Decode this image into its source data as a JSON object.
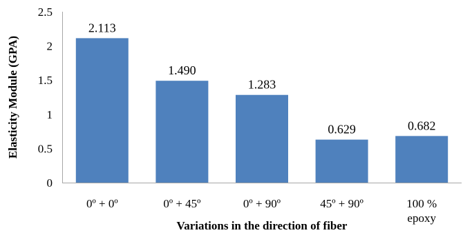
{
  "chart_data": {
    "type": "bar",
    "title": "",
    "xlabel": "Variations in the direction of fiber",
    "ylabel": "Elasticity Module (GPA)",
    "ylim": [
      0,
      2.5
    ],
    "yticks": [
      "0",
      "0.5",
      "1",
      "1.5",
      "2",
      "2.5"
    ],
    "grid": false,
    "legend": "none",
    "bar_color": "#4f81bd",
    "categories": [
      [
        "0º + 0º"
      ],
      [
        "0º + 45º"
      ],
      [
        "0º + 90º"
      ],
      [
        "45º + 90º"
      ],
      [
        "100 %",
        "epoxy"
      ]
    ],
    "values": [
      2.113,
      1.49,
      1.283,
      0.629,
      0.682
    ],
    "data_labels": [
      "2.113",
      "1.490",
      "1.283",
      "0.629",
      "0.682"
    ]
  }
}
